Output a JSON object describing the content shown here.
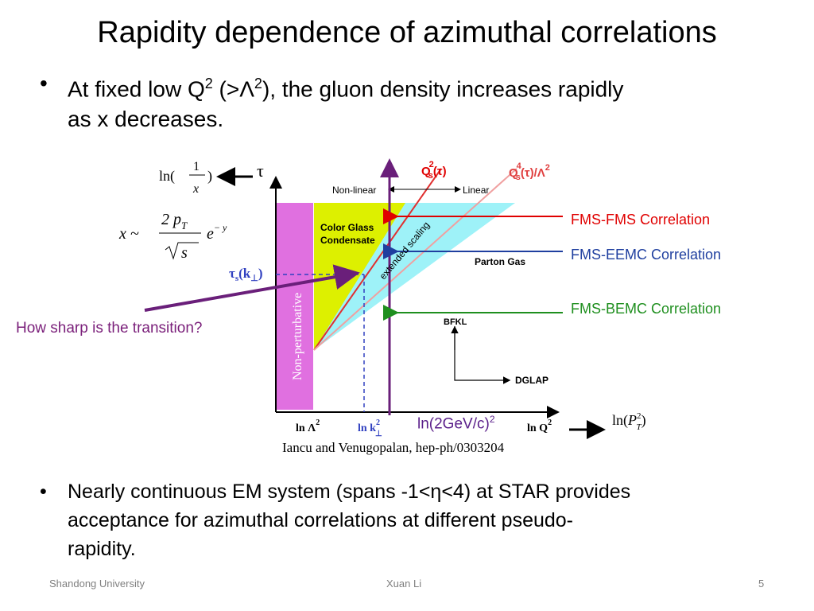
{
  "title": "Rapidity dependence of azimuthal correlations",
  "bullets": [
    {
      "pre": "At fixed low Q",
      "sup1": "2",
      "mid": " (>Λ",
      "sup2": "2",
      "post": "), the gluon density increases rapidly",
      "line2": "as x decreases."
    },
    {
      "line1": "Nearly continuous EM system (spans -1<η<4) at STAR provides",
      "line2": "acceptance for azimuthal correlations at different pseudo-",
      "line3": "rapidity."
    }
  ],
  "bullet_glyph": "•",
  "diagram": {
    "regions": {
      "non_linear": "Non-linear",
      "linear": "Linear",
      "cgc_line1": "Color Glass",
      "cgc_line2": "Condensate",
      "parton_gas": "Parton Gas",
      "extended_scaling": "extended scaling",
      "non_perturbative": "Non-perturbative",
      "bfkl": "BFKL",
      "dglap": "DGLAP"
    },
    "axis_labels": {
      "tau": "τ",
      "lnLambda": "ln Λ",
      "lnLambda_sup": "2",
      "lnk": "ln k",
      "lnk_sup": "2",
      "lnk_sub": "⊥",
      "lnQ": "ln Q",
      "lnQ_sup": "2",
      "tau_s": "τ",
      "tau_s_sub": "s",
      "tau_s_arg": "(k",
      "tau_s_arg_sub": "⊥",
      "tau_s_close": ")"
    },
    "curve_labels": {
      "qs2": "Q",
      "qs2_sup": "2",
      "qs2_sub": "s",
      "qs2_arg": "(τ)",
      "qs4": "Q",
      "qs4_sup": "4",
      "qs4_sub": "s",
      "qs4_arg": "(τ)",
      "qs4_div": "/Λ",
      "qs4_div_sup": "2"
    },
    "formulas": {
      "ln": "ln(",
      "one": "1",
      "x": "x",
      "close": ")",
      "x_sim": "x ~",
      "two_p": "2 p",
      "T": "T",
      "sqrt_s": "s",
      "e": "e",
      "exp": "− y",
      "lnPT": "ln(",
      "P": "P",
      "P_sup": "2",
      "P_sub": "T",
      "lnPT_close": ")"
    },
    "colors": {
      "pink": "#e070e0",
      "yellow": "#ddf000",
      "cyan": "#9ef2f8",
      "red": "#e00000",
      "blue": "#1f3f9f",
      "green": "#1f8f1f",
      "purple": "#6a1f7a"
    }
  },
  "annotations": {
    "fms_fms": "FMS-FMS Correlation",
    "fms_eemc": "FMS-EEMC Correlation",
    "fms_bemc": "FMS-BEMC Correlation",
    "sharp": "How sharp is the transition?",
    "ln2gev": "ln(2GeV/c)",
    "ln2gev_sup": "2",
    "credit": "Iancu and Venugopalan, hep-ph/0303204"
  },
  "footer": {
    "left": "Shandong University",
    "center": "Xuan Li",
    "page": "5"
  }
}
